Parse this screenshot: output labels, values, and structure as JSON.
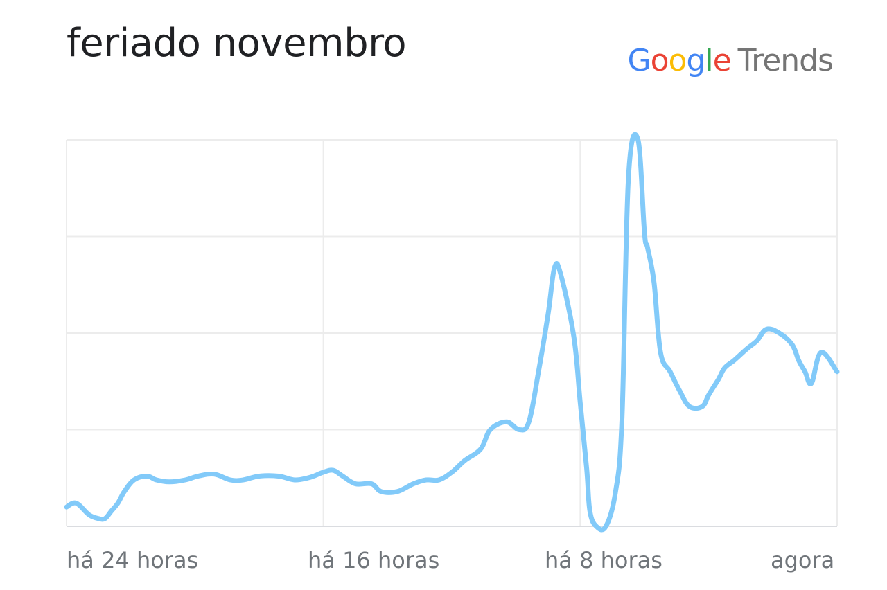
{
  "title": "feriado novembro",
  "brand": {
    "google": [
      "G",
      "o",
      "o",
      "g",
      "l",
      "e"
    ],
    "google_colors": [
      "#4285F4",
      "#EA4335",
      "#FBBC05",
      "#4285F4",
      "#34A853",
      "#EA4335"
    ],
    "trends": "Trends"
  },
  "chart_data": {
    "type": "line",
    "xlabel": "",
    "ylabel": "",
    "x_tick_labels": [
      "há 24 horas",
      "há 16 horas",
      "há 8 horas",
      "agora"
    ],
    "x_range": [
      -24,
      0
    ],
    "ylim": [
      0,
      100
    ],
    "grid": true,
    "line_color": "#82CAF9",
    "series": [
      {
        "x": [
          -24.0,
          -23.7,
          -23.3,
          -23.0,
          -22.8,
          -22.6,
          -22.4,
          -22.2,
          -21.9,
          -21.5,
          -21.2,
          -20.8,
          -20.3,
          -19.9,
          -19.4,
          -18.9,
          -18.5,
          -18.0,
          -17.4,
          -16.9,
          -16.5,
          -16.3,
          -16.0,
          -15.7,
          -15.4,
          -15.0,
          -14.5,
          -14.2,
          -13.7,
          -13.2,
          -12.8,
          -12.4,
          -12.0,
          -11.6,
          -11.1,
          -10.8,
          -10.3,
          -9.9,
          -9.6,
          -9.3,
          -9.0,
          -8.8,
          -8.6,
          -8.2,
          -8.0,
          -7.8,
          -7.7,
          -7.5,
          -7.2,
          -6.9,
          -6.7,
          -6.5,
          -6.2,
          -6.0,
          -5.9,
          -5.7,
          -5.5,
          -5.2,
          -4.9,
          -4.6,
          -4.2,
          -4.0,
          -3.7,
          -3.5,
          -3.2,
          -2.8,
          -2.5,
          -2.2,
          -1.8,
          -1.4,
          -1.2,
          -1.0,
          -0.8,
          -0.5,
          0.0
        ],
        "values": [
          5,
          6,
          3,
          2,
          2,
          4,
          6,
          9,
          12,
          13,
          12,
          11.5,
          12,
          13,
          13.5,
          12,
          12,
          13,
          13,
          12,
          12.5,
          13,
          14,
          14.5,
          13,
          11,
          11,
          9,
          9,
          11,
          12,
          12,
          14,
          17,
          20,
          25,
          27,
          25,
          27,
          40,
          55,
          67,
          65,
          49,
          32,
          15,
          4,
          0,
          0,
          9,
          28,
          90,
          100,
          76,
          72,
          63,
          45,
          40,
          35,
          31,
          31,
          34,
          38,
          41,
          43,
          46,
          48,
          51,
          50,
          47,
          43,
          40,
          37,
          45,
          40
        ]
      }
    ]
  }
}
